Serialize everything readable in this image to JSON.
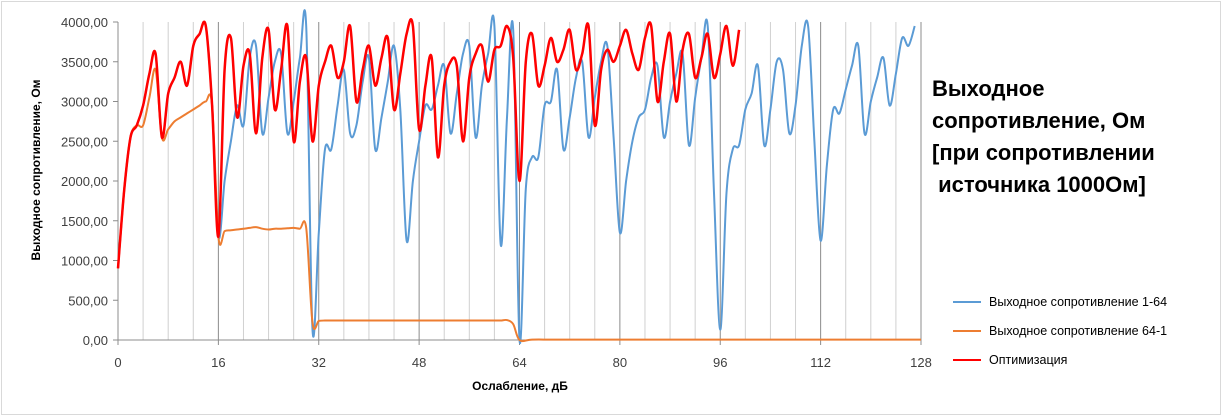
{
  "title_lines": [
    "Выходное",
    "сопротивление, Ом",
    "[при сопротивлении",
    " источника 1000Ом]"
  ],
  "chart_data": {
    "type": "line",
    "title": "Выходное сопротивление, Ом [при сопротивлении источника 1000Ом]",
    "xlabel": "Ослабление, дБ",
    "ylabel": "Выходное сопротивление, Ом",
    "xlim": [
      0,
      128
    ],
    "ylim": [
      0,
      4000
    ],
    "xticks": [
      0,
      16,
      32,
      48,
      64,
      80,
      96,
      112,
      128
    ],
    "xtick_labels": [
      "0",
      "16",
      "32",
      "48",
      "64",
      "80",
      "96",
      "112",
      "128"
    ],
    "yticks": [
      0,
      500,
      1000,
      1500,
      2000,
      2500,
      3000,
      3500,
      4000
    ],
    "ytick_labels": [
      "0,00",
      "500,00",
      "1000,00",
      "1500,00",
      "2000,00",
      "2500,00",
      "3000,00",
      "3500,00",
      "4000,00"
    ],
    "grid": "vertical",
    "legend_position": "right",
    "series": [
      {
        "name": "Выходное сопротивление 1-64",
        "color": "#5b9bd5",
        "x": [
          0,
          1,
          2,
          3,
          4,
          5,
          6,
          7,
          8,
          9,
          10,
          11,
          12,
          13,
          14,
          15,
          16,
          17,
          18,
          19,
          20,
          21,
          22,
          23,
          24,
          25,
          26,
          27,
          28,
          29,
          30,
          31,
          32,
          33,
          34,
          35,
          36,
          37,
          38,
          39,
          40,
          41,
          42,
          43,
          44,
          45,
          46,
          47,
          48,
          49,
          50,
          51,
          52,
          53,
          54,
          55,
          56,
          57,
          58,
          59,
          60,
          61,
          62,
          63,
          64,
          65,
          66,
          67,
          68,
          69,
          70,
          71,
          72,
          73,
          74,
          75,
          76,
          77,
          78,
          79,
          80,
          81,
          82,
          83,
          84,
          85,
          86,
          87,
          88,
          89,
          90,
          91,
          92,
          93,
          94,
          95,
          96,
          97,
          98,
          99,
          100,
          101,
          102,
          103,
          104,
          105,
          106,
          107,
          108,
          109,
          110,
          111,
          112,
          113,
          114,
          115,
          116,
          117,
          118,
          119,
          120,
          121,
          122,
          123,
          124,
          125,
          126,
          127
        ],
        "y": [
          900,
          1900,
          2550,
          2700,
          2950,
          3350,
          3600,
          2550,
          3100,
          3300,
          3500,
          3200,
          3700,
          3850,
          3950,
          2950,
          1300,
          2000,
          2500,
          2950,
          2700,
          3550,
          3700,
          2600,
          3050,
          3500,
          3600,
          2600,
          3000,
          3550,
          3950,
          130,
          1350,
          2400,
          2400,
          2950,
          3400,
          2600,
          2700,
          3250,
          3550,
          2400,
          2800,
          3250,
          3700,
          2900,
          1250,
          2000,
          2500,
          2950,
          2900,
          3200,
          3450,
          2600,
          3100,
          3600,
          3700,
          2550,
          3200,
          3600,
          3950,
          1200,
          2800,
          3900,
          0,
          1900,
          2300,
          2300,
          2950,
          3000,
          3400,
          2400,
          2800,
          3300,
          3500,
          2550,
          3050,
          3500,
          3700,
          2550,
          1350,
          2000,
          2500,
          2800,
          2900,
          3300,
          3450,
          2550,
          3000,
          3350,
          3600,
          2450,
          3050,
          3550,
          3950,
          1850,
          130,
          1850,
          2400,
          2450,
          2900,
          3100,
          3450,
          2450,
          2900,
          3500,
          3400,
          2600,
          2950,
          3700,
          3950,
          2500,
          1250,
          2200,
          2900,
          2850,
          3150,
          3450,
          3700,
          2600,
          3000,
          3300,
          3550,
          2950,
          3350,
          3800,
          3700,
          3950
        ]
      },
      {
        "name": "Выходное сопротивление 64-1",
        "color": "#ed7d31",
        "x": [
          0,
          1,
          2,
          3,
          4,
          5,
          6,
          7,
          8,
          9,
          10,
          11,
          12,
          13,
          14,
          15,
          16,
          17,
          18,
          19,
          20,
          21,
          22,
          23,
          24,
          25,
          26,
          27,
          28,
          29,
          30,
          31,
          32,
          33,
          34,
          35,
          36,
          37,
          38,
          39,
          40,
          41,
          42,
          43,
          44,
          45,
          46,
          47,
          48,
          49,
          50,
          51,
          52,
          53,
          54,
          55,
          56,
          57,
          58,
          59,
          60,
          61,
          62,
          63,
          64,
          66,
          70,
          80,
          90,
          100,
          110,
          120,
          128
        ],
        "y": [
          900,
          1900,
          2550,
          2700,
          2700,
          3050,
          3400,
          2550,
          2650,
          2750,
          2800,
          2850,
          2900,
          2950,
          3000,
          2950,
          1300,
          1370,
          1380,
          1390,
          1400,
          1410,
          1420,
          1400,
          1390,
          1400,
          1400,
          1405,
          1410,
          1400,
          1410,
          220,
          240,
          245,
          245,
          245,
          245,
          245,
          245,
          245,
          245,
          245,
          245,
          245,
          245,
          245,
          245,
          245,
          245,
          245,
          245,
          245,
          245,
          245,
          245,
          245,
          245,
          245,
          245,
          245,
          245,
          245,
          250,
          200,
          0,
          5,
          5,
          5,
          5,
          5,
          5,
          5,
          5
        ]
      },
      {
        "name": "Оптимизация",
        "color": "#ff0000",
        "x": [
          0,
          1,
          2,
          3,
          4,
          5,
          6,
          7,
          8,
          9,
          10,
          11,
          12,
          13,
          14,
          15,
          16,
          17,
          18,
          19,
          20,
          21,
          22,
          23,
          24,
          25,
          26,
          27,
          28,
          29,
          30,
          31,
          32,
          33,
          34,
          35,
          36,
          37,
          38,
          39,
          40,
          41,
          42,
          43,
          44,
          45,
          46,
          47,
          48,
          49,
          50,
          51,
          52,
          53,
          54,
          55,
          56,
          57,
          58,
          59,
          60,
          61,
          62,
          63,
          64,
          65,
          66,
          67,
          68,
          69,
          70,
          71,
          72,
          73,
          74,
          75,
          76,
          77,
          78,
          79,
          80,
          81,
          82,
          83,
          84,
          85,
          86,
          87,
          88,
          89,
          90,
          91,
          92,
          93,
          94,
          95,
          96,
          97,
          98,
          99
        ],
        "y": [
          900,
          1900,
          2550,
          2700,
          2950,
          3350,
          3600,
          2550,
          3100,
          3300,
          3500,
          3200,
          3700,
          3850,
          3950,
          2950,
          1300,
          3400,
          3800,
          2800,
          3450,
          3600,
          2600,
          3550,
          3900,
          2900,
          3400,
          3950,
          2500,
          3250,
          3550,
          2500,
          3200,
          3500,
          3700,
          3300,
          3500,
          3950,
          3000,
          3400,
          3700,
          3200,
          3550,
          3800,
          2900,
          3350,
          3850,
          3950,
          2650,
          3200,
          3550,
          2300,
          3200,
          3500,
          3450,
          2500,
          3300,
          3600,
          3700,
          3250,
          3650,
          3700,
          3950,
          3550,
          2000,
          3500,
          3850,
          3200,
          3450,
          3800,
          3500,
          3650,
          3900,
          3400,
          3600,
          3950,
          2700,
          3400,
          3650,
          3500,
          3700,
          3900,
          3600,
          3400,
          3800,
          3950,
          3000,
          3500,
          3850,
          3000,
          3650,
          3850,
          3300,
          3550,
          3850,
          3300,
          3600,
          3950,
          3450,
          3900
        ]
      }
    ]
  }
}
